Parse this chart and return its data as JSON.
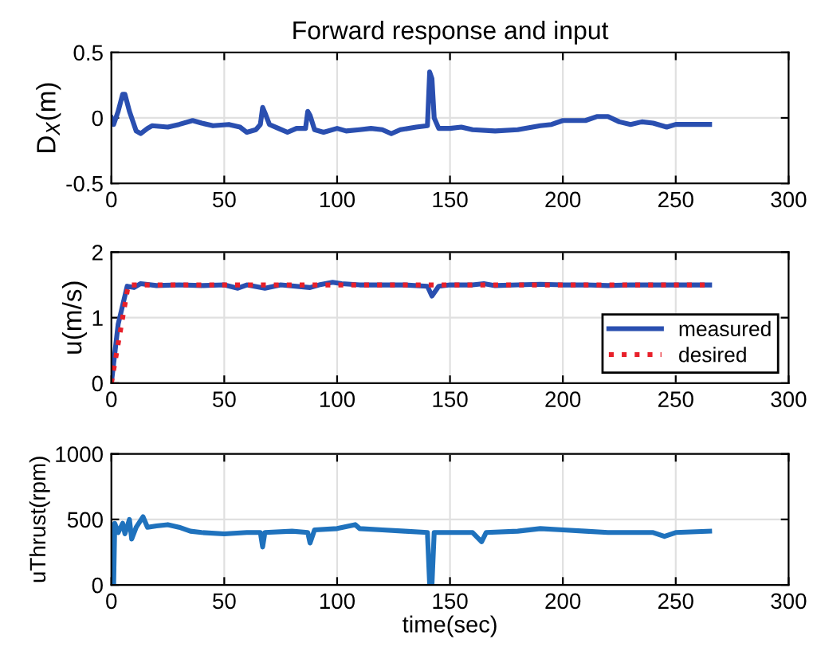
{
  "chart_data": [
    {
      "type": "line",
      "title": "Forward response and input",
      "ylabel": "D$_{X}$(m)",
      "xlim": [
        0,
        300
      ],
      "xticks": [
        0,
        50,
        100,
        150,
        200,
        250,
        300
      ],
      "ylim": [
        -0.5,
        0.5
      ],
      "yticks": [
        -0.5,
        0,
        0.5
      ],
      "grid": true,
      "legend": false,
      "series": [
        {
          "color": "#2a4fb0",
          "x": [
            0,
            1,
            3,
            5,
            6,
            8,
            11,
            13,
            16,
            18,
            25,
            30,
            36,
            40,
            45,
            52,
            57,
            60,
            64,
            66,
            67,
            68,
            70,
            74,
            78,
            82,
            86,
            87,
            88,
            90,
            94,
            100,
            104,
            110,
            115,
            120,
            124,
            128,
            135,
            140,
            141,
            142,
            143,
            145,
            150,
            155,
            160,
            170,
            180,
            190,
            195,
            200,
            210,
            215,
            220,
            225,
            230,
            235,
            240,
            246,
            250,
            265
          ],
          "values": [
            0,
            -0.05,
            0.05,
            0.18,
            0.18,
            0.05,
            -0.1,
            -0.12,
            -0.08,
            -0.06,
            -0.07,
            -0.05,
            -0.02,
            -0.04,
            -0.06,
            -0.05,
            -0.07,
            -0.11,
            -0.09,
            -0.05,
            0.08,
            0.04,
            -0.05,
            -0.08,
            -0.11,
            -0.08,
            -0.08,
            0.05,
            0.02,
            -0.09,
            -0.11,
            -0.08,
            -0.1,
            -0.09,
            -0.08,
            -0.09,
            -0.12,
            -0.09,
            -0.07,
            -0.06,
            0.35,
            0.3,
            0,
            -0.08,
            -0.08,
            -0.07,
            -0.09,
            -0.1,
            -0.09,
            -0.06,
            -0.05,
            -0.02,
            -0.02,
            0.01,
            0.01,
            -0.03,
            -0.05,
            -0.03,
            -0.04,
            -0.07,
            -0.05,
            -0.05
          ]
        }
      ]
    },
    {
      "type": "line",
      "ylabel": "u(m/s)",
      "xlim": [
        0,
        300
      ],
      "xticks": [
        0,
        50,
        100,
        150,
        200,
        250,
        300
      ],
      "ylim": [
        0,
        2
      ],
      "yticks": [
        0,
        1,
        2
      ],
      "grid": true,
      "legend": "bottom right",
      "series": [
        {
          "name": "measured",
          "color": "#2a4fb0",
          "line_style": "solid",
          "x": [
            0,
            3,
            7,
            10,
            13,
            20,
            30,
            40,
            50,
            56,
            60,
            68,
            75,
            88,
            92,
            98,
            102,
            110,
            120,
            130,
            140,
            142,
            145,
            150,
            160,
            165,
            170,
            180,
            190,
            200,
            210,
            220,
            230,
            240,
            250,
            265
          ],
          "values": [
            0,
            0.9,
            1.48,
            1.46,
            1.52,
            1.49,
            1.5,
            1.49,
            1.5,
            1.45,
            1.5,
            1.45,
            1.5,
            1.46,
            1.5,
            1.54,
            1.52,
            1.5,
            1.5,
            1.5,
            1.48,
            1.33,
            1.48,
            1.5,
            1.5,
            1.52,
            1.49,
            1.5,
            1.51,
            1.5,
            1.5,
            1.49,
            1.5,
            1.5,
            1.5,
            1.5
          ]
        },
        {
          "name": "desired",
          "color": "#e8202a",
          "line_style": "dotted",
          "x": [
            0,
            7.5,
            265
          ],
          "values": [
            0,
            1.5,
            1.5
          ]
        }
      ]
    },
    {
      "type": "line",
      "xlabel": "time(sec)",
      "ylabel": "uThrust(rpm)",
      "xlim": [
        0,
        300
      ],
      "xticks": [
        0,
        50,
        100,
        150,
        200,
        250,
        300
      ],
      "ylim": [
        0,
        1000
      ],
      "yticks": [
        0,
        500,
        1000
      ],
      "grid": true,
      "legend": false,
      "series": [
        {
          "color": "#1f72bd",
          "x": [
            0,
            1,
            1.5,
            3,
            5,
            6,
            8,
            9,
            11,
            14,
            16,
            20,
            25,
            30,
            35,
            40,
            50,
            60,
            66,
            67,
            68,
            80,
            87,
            88,
            90,
            100,
            108,
            110,
            120,
            130,
            140,
            141,
            142,
            143,
            150,
            160,
            164,
            166,
            180,
            190,
            200,
            210,
            220,
            230,
            240,
            245,
            250,
            265
          ],
          "values": [
            0,
            0,
            470,
            400,
            470,
            390,
            500,
            350,
            440,
            520,
            440,
            450,
            460,
            440,
            410,
            400,
            390,
            400,
            400,
            290,
            400,
            410,
            400,
            320,
            420,
            430,
            460,
            430,
            420,
            410,
            400,
            0,
            0,
            400,
            400,
            400,
            330,
            400,
            410,
            430,
            420,
            410,
            400,
            400,
            400,
            370,
            400,
            410
          ]
        }
      ]
    }
  ]
}
